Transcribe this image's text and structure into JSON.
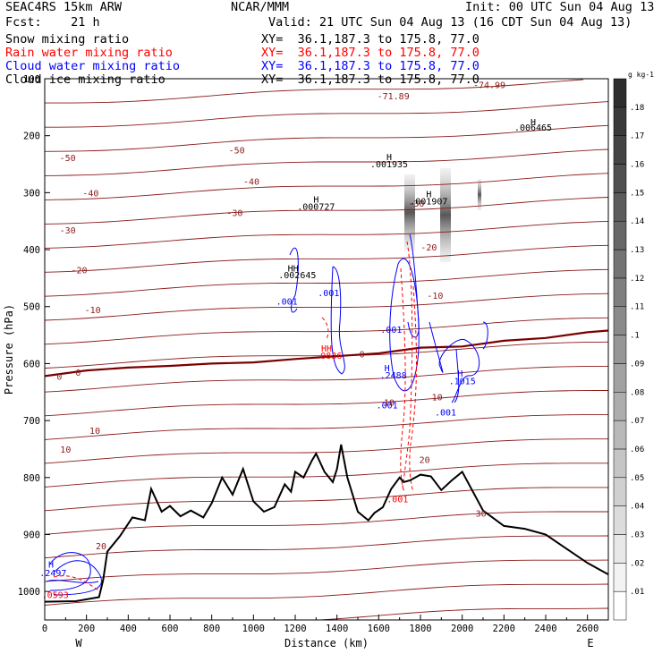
{
  "header": {
    "model": "SEAC4RS 15km ARW",
    "center": "NCAR/MMM",
    "init": "Init: 00 UTC Sun 04 Aug 13",
    "fcst": "Fcst:    21 h",
    "valid": "Valid: 21 UTC Sun 04 Aug 13 (16 CDT Sun 04 Aug 13)"
  },
  "fields": [
    {
      "label": "Snow mixing ratio",
      "xy": "XY=  36.1,187.3 to 175.8, 77.0",
      "color": "#000000"
    },
    {
      "label": "Rain water mixing ratio",
      "xy": "XY=  36.1,187.3 to 175.8, 77.0",
      "color": "#ff0000"
    },
    {
      "label": "Cloud water mixing ratio",
      "xy": "XY=  36.1,187.3 to 175.8, 77.0",
      "color": "#0000ff"
    },
    {
      "label": "Cloud ice mixing ratio",
      "xy": "XY=  36.1,187.3 to 175.8, 77.0",
      "color": "#000000"
    }
  ],
  "colors": {
    "temperature": "#8b1a1a",
    "freezing_level": "#7a0000",
    "terrain": "#000000",
    "cloud_water": "#0000ff",
    "rain_water": "#ff0000"
  },
  "chart_data": {
    "type": "contour",
    "xlabel": "Distance (km)",
    "ylabel": "Pressure (hPa)",
    "xlim": [
      0,
      2700
    ],
    "ylim": [
      1050,
      100
    ],
    "x_ticks": [
      0,
      200,
      400,
      600,
      800,
      1000,
      1200,
      1400,
      1600,
      1800,
      2000,
      2200,
      2400,
      2600
    ],
    "y_ticks": [
      100,
      200,
      300,
      400,
      500,
      600,
      700,
      800,
      900,
      1000
    ],
    "x_end_labels": [
      "W",
      "E"
    ],
    "colorbar": {
      "unit": "g kg-1",
      "ticks": [
        ".01",
        ".02",
        ".03",
        ".04",
        ".05",
        ".06",
        ".07",
        ".08",
        ".09",
        ".1",
        ".11",
        ".12",
        ".13",
        ".14",
        ".15",
        ".16",
        ".17",
        ".18"
      ]
    },
    "isotherm_labels": [
      {
        "text": "-74.99",
        "x": 2130,
        "y": 110
      },
      {
        "text": "-71.89",
        "x": 1670,
        "y": 130
      },
      {
        "text": "-50",
        "x": 110,
        "y": 238
      },
      {
        "text": "-50",
        "x": 920,
        "y": 225
      },
      {
        "text": "-40",
        "x": 220,
        "y": 300
      },
      {
        "text": "-40",
        "x": 990,
        "y": 280
      },
      {
        "text": "-30",
        "x": 110,
        "y": 365
      },
      {
        "text": "-30",
        "x": 910,
        "y": 335
      },
      {
        "text": "-30",
        "x": 1780,
        "y": 318
      },
      {
        "text": "-20",
        "x": 165,
        "y": 435
      },
      {
        "text": "-20",
        "x": 1840,
        "y": 395
      },
      {
        "text": "-10",
        "x": 230,
        "y": 505
      },
      {
        "text": "-10",
        "x": 1870,
        "y": 480
      },
      {
        "text": "0",
        "x": 70,
        "y": 622
      },
      {
        "text": "0",
        "x": 160,
        "y": 615
      },
      {
        "text": "0",
        "x": 1520,
        "y": 583
      },
      {
        "text": "10",
        "x": 100,
        "y": 750
      },
      {
        "text": "10",
        "x": 240,
        "y": 717
      },
      {
        "text": "10",
        "x": 1650,
        "y": 668
      },
      {
        "text": "10",
        "x": 1880,
        "y": 658
      },
      {
        "text": "20",
        "x": 270,
        "y": 920
      },
      {
        "text": "20",
        "x": 1820,
        "y": 768
      },
      {
        "text": "30",
        "x": 2090,
        "y": 862
      }
    ],
    "extremum_labels": [
      {
        "text": "H",
        "x": 2340,
        "y": 175,
        "color": "#000000"
      },
      {
        "text": ".006465",
        "x": 2340,
        "y": 185,
        "color": "#000000"
      },
      {
        "text": "H",
        "x": 1650,
        "y": 237,
        "color": "#000000"
      },
      {
        "text": ".001935",
        "x": 1650,
        "y": 249,
        "color": "#000000"
      },
      {
        "text": "H",
        "x": 1300,
        "y": 311,
        "color": "#000000"
      },
      {
        "text": ".000727",
        "x": 1300,
        "y": 324,
        "color": "#000000"
      },
      {
        "text": "H",
        "x": 1840,
        "y": 302,
        "color": "#000000"
      },
      {
        "text": ".001907",
        "x": 1840,
        "y": 314,
        "color": "#000000"
      },
      {
        "text": "HH",
        "x": 1190,
        "y": 432,
        "color": "#000000"
      },
      {
        "text": ".002645",
        "x": 1210,
        "y": 444,
        "color": "#000000"
      },
      {
        "text": ".001",
        "x": 1160,
        "y": 490,
        "color": "#0000ff"
      },
      {
        "text": ".001",
        "x": 1360,
        "y": 475,
        "color": "#0000ff"
      },
      {
        "text": "HH",
        "x": 1350,
        "y": 573,
        "color": "#ff0000"
      },
      {
        "text": ".0836",
        "x": 1360,
        "y": 585,
        "color": "#ff0000"
      },
      {
        "text": ".001",
        "x": 1660,
        "y": 540,
        "color": "#0000ff"
      },
      {
        "text": "H",
        "x": 1640,
        "y": 607,
        "color": "#0000ff"
      },
      {
        "text": ".2488",
        "x": 1670,
        "y": 620,
        "color": "#0000ff"
      },
      {
        "text": "H",
        "x": 1990,
        "y": 617,
        "color": "#0000ff"
      },
      {
        "text": ".1015",
        "x": 2000,
        "y": 630,
        "color": "#0000ff"
      },
      {
        "text": ".001",
        "x": 1920,
        "y": 685,
        "color": "#0000ff"
      },
      {
        "text": ".001",
        "x": 1640,
        "y": 672,
        "color": "#0000ff"
      },
      {
        "text": ".001",
        "x": 1690,
        "y": 837,
        "color": "#ff0000"
      },
      {
        "text": "H",
        "x": 30,
        "y": 952,
        "color": "#0000ff"
      },
      {
        "text": ".2497",
        "x": 40,
        "y": 967,
        "color": "#0000ff"
      },
      {
        "text": ".0593",
        "x": 50,
        "y": 1005,
        "color": "#ff0000"
      }
    ],
    "terrain": {
      "x": [
        0,
        150,
        260,
        280,
        300,
        360,
        420,
        480,
        510,
        560,
        600,
        650,
        700,
        760,
        800,
        850,
        900,
        950,
        1000,
        1050,
        1100,
        1150,
        1180,
        1200,
        1240,
        1280,
        1300,
        1340,
        1380,
        1400,
        1420,
        1450,
        1500,
        1550,
        1580,
        1620,
        1660,
        1700,
        1720,
        1750,
        1800,
        1850,
        1900,
        1950,
        2000,
        2100,
        2200,
        2300,
        2400,
        2500,
        2600,
        2700
      ],
      "p": [
        1018,
        1017,
        1010,
        980,
        930,
        903,
        870,
        875,
        820,
        860,
        850,
        868,
        858,
        870,
        845,
        800,
        830,
        785,
        842,
        860,
        852,
        812,
        825,
        790,
        800,
        770,
        758,
        790,
        808,
        785,
        742,
        800,
        860,
        875,
        862,
        852,
        820,
        800,
        808,
        805,
        795,
        798,
        822,
        805,
        790,
        858,
        885,
        890,
        900,
        925,
        950,
        970
      ]
    },
    "freezing_level": {
      "x": [
        0,
        200,
        400,
        600,
        800,
        1000,
        1200,
        1400,
        1600,
        1800,
        2000,
        2200,
        2400,
        2600,
        2700
      ],
      "p": [
        622,
        612,
        607,
        604,
        600,
        598,
        592,
        587,
        582,
        572,
        570,
        560,
        555,
        545,
        542
      ]
    }
  }
}
